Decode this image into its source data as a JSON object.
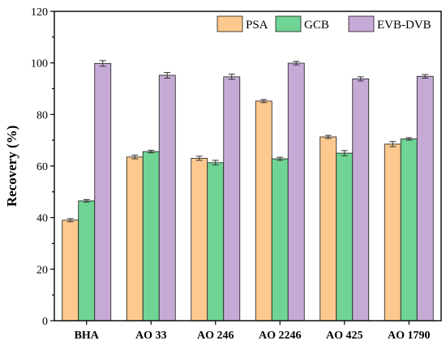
{
  "chart_data": {
    "type": "bar",
    "title": "",
    "xlabel": "",
    "ylabel": "Recovery (%)",
    "ylim": [
      0,
      120
    ],
    "yticks": [
      0,
      20,
      40,
      60,
      80,
      100,
      120
    ],
    "grid": false,
    "legend_position": "top-right",
    "categories": [
      "BHA",
      "AO 33",
      "AO 246",
      "AO 2246",
      "AO 425",
      "AO 1790"
    ],
    "series": [
      {
        "name": "PSA",
        "color": "#fdc98f",
        "values": [
          39.0,
          63.5,
          63.0,
          85.2,
          71.3,
          68.5
        ],
        "errors": [
          0.6,
          0.7,
          0.8,
          0.6,
          0.6,
          1.0
        ]
      },
      {
        "name": "GCB",
        "color": "#6fd494",
        "values": [
          46.5,
          65.6,
          61.3,
          62.8,
          65.0,
          70.5
        ],
        "errors": [
          0.5,
          0.5,
          0.9,
          0.6,
          1.0,
          0.5
        ]
      },
      {
        "name": "EVB-DVB",
        "color": "#c6aad6",
        "values": [
          99.8,
          95.2,
          94.6,
          99.9,
          93.8,
          94.8
        ],
        "errors": [
          1.1,
          1.1,
          1.0,
          0.7,
          0.8,
          0.7
        ]
      }
    ]
  }
}
